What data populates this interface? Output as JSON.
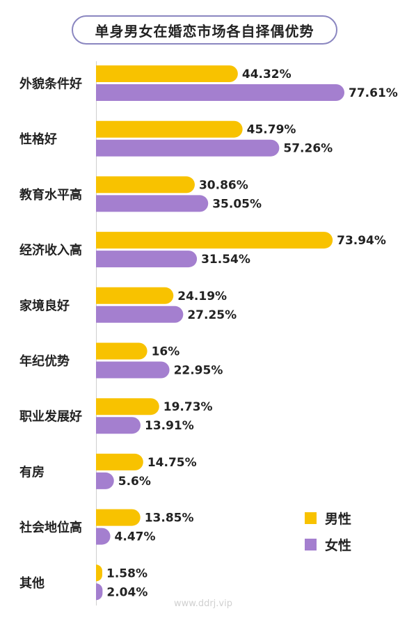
{
  "colors": {
    "male": "#f8c200",
    "female": "#a47fcf"
  },
  "chart_data": {
    "type": "bar",
    "orientation": "horizontal",
    "title": "单身男女在婚恋市场各自择偶优势",
    "categories": [
      "外貌条件好",
      "性格好",
      "教育水平高",
      "经济收入高",
      "家境良好",
      "年纪优势",
      "职业发展好",
      "有房",
      "社会地位高",
      "其他"
    ],
    "series": [
      {
        "name": "男性",
        "values": [
          44.32,
          45.79,
          30.86,
          73.94,
          24.19,
          16,
          19.73,
          14.75,
          13.85,
          1.58
        ]
      },
      {
        "name": "女性",
        "values": [
          77.61,
          57.26,
          35.05,
          31.54,
          27.25,
          22.95,
          13.91,
          5.6,
          4.47,
          2.04
        ]
      }
    ],
    "value_suffix": "%",
    "legend_position": "bottom-right",
    "grid": false
  },
  "watermark": "www.ddrj.vip"
}
